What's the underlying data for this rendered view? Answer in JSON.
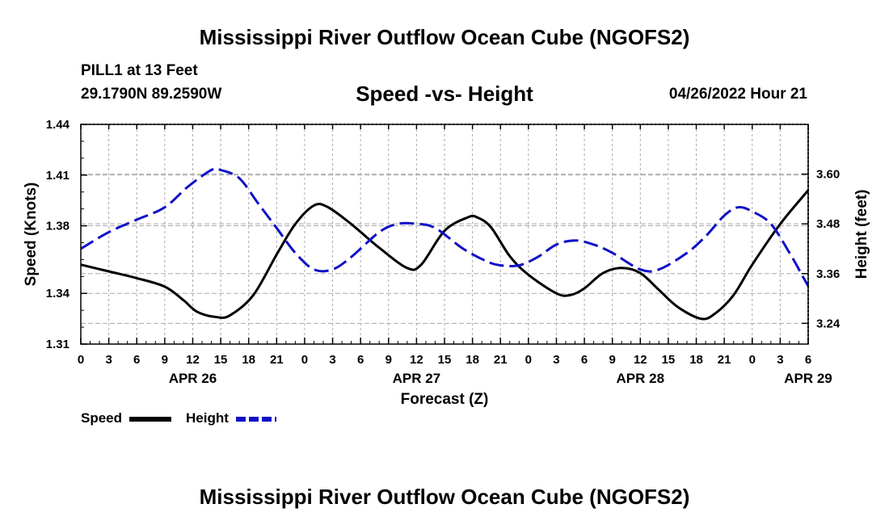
{
  "header": {
    "title_top": "Mississippi River Outflow Ocean Cube (NGOFS2)",
    "title_bottom": "Mississippi River Outflow Ocean Cube (NGOFS2)",
    "station": "PILL1 at 13 Feet",
    "coords": "29.1790N  89.2590W",
    "chart_title": "Speed -vs- Height",
    "date": "04/26/2022 Hour 21"
  },
  "legend": {
    "speed_label": "Speed",
    "height_label": "Height"
  },
  "colors": {
    "speed": "#000000",
    "height": "#1010c8",
    "grid": "#aaaaaa"
  },
  "chart_data": {
    "type": "line",
    "title": "Speed -vs- Height",
    "xlabel": "Forecast (Z)",
    "ylabel": "Speed (Knots)",
    "y2label": "Height (feet)",
    "x_range_hours": [
      0,
      81
    ],
    "x_ticks": [
      {
        "h": 0,
        "label": "0"
      },
      {
        "h": 3,
        "label": "3"
      },
      {
        "h": 6,
        "label": "6"
      },
      {
        "h": 9,
        "label": "9"
      },
      {
        "h": 12,
        "label": "12"
      },
      {
        "h": 15,
        "label": "15"
      },
      {
        "h": 18,
        "label": "18"
      },
      {
        "h": 21,
        "label": "21"
      },
      {
        "h": 24,
        "label": "0"
      },
      {
        "h": 27,
        "label": "3"
      },
      {
        "h": 30,
        "label": "6"
      },
      {
        "h": 33,
        "label": "9"
      },
      {
        "h": 36,
        "label": "12"
      },
      {
        "h": 39,
        "label": "15"
      },
      {
        "h": 42,
        "label": "18"
      },
      {
        "h": 45,
        "label": "21"
      },
      {
        "h": 48,
        "label": "0"
      },
      {
        "h": 51,
        "label": "3"
      },
      {
        "h": 54,
        "label": "6"
      },
      {
        "h": 57,
        "label": "9"
      },
      {
        "h": 60,
        "label": "12"
      },
      {
        "h": 63,
        "label": "15"
      },
      {
        "h": 66,
        "label": "18"
      },
      {
        "h": 69,
        "label": "21"
      },
      {
        "h": 72,
        "label": "0"
      },
      {
        "h": 75,
        "label": "3"
      },
      {
        "h": 78,
        "label": "6"
      }
    ],
    "date_labels": [
      {
        "h": 12,
        "label": "APR 26"
      },
      {
        "h": 36,
        "label": "APR 27"
      },
      {
        "h": 60,
        "label": "APR 28"
      },
      {
        "h": 78,
        "label": "APR 29"
      }
    ],
    "y_left": {
      "min": 1.31,
      "max": 1.44,
      "ticks": [
        "1.31",
        "1.34",
        "1.38",
        "1.41",
        "1.44"
      ]
    },
    "y_right": {
      "min": 3.19,
      "max": 3.72,
      "ticks": [
        "3.24",
        "3.36",
        "3.48",
        "3.60"
      ]
    },
    "series": [
      {
        "name": "Speed",
        "axis": "left",
        "style": "solid",
        "points": [
          [
            0,
            1.357
          ],
          [
            3,
            1.353
          ],
          [
            6,
            1.349
          ],
          [
            9,
            1.344
          ],
          [
            11,
            1.336
          ],
          [
            12.5,
            1.329
          ],
          [
            14.5,
            1.326
          ],
          [
            16,
            1.327
          ],
          [
            18.5,
            1.339
          ],
          [
            21,
            1.363
          ],
          [
            23,
            1.381
          ],
          [
            25,
            1.392
          ],
          [
            26.5,
            1.391
          ],
          [
            29,
            1.381
          ],
          [
            32,
            1.367
          ],
          [
            35,
            1.355
          ],
          [
            36.5,
            1.357
          ],
          [
            39,
            1.377
          ],
          [
            41.5,
            1.385
          ],
          [
            42.5,
            1.385
          ],
          [
            44,
            1.379
          ],
          [
            46,
            1.362
          ],
          [
            48,
            1.351
          ],
          [
            51,
            1.34
          ],
          [
            52.5,
            1.339
          ],
          [
            54,
            1.343
          ],
          [
            56,
            1.352
          ],
          [
            58,
            1.355
          ],
          [
            60,
            1.352
          ],
          [
            62,
            1.342
          ],
          [
            64,
            1.332
          ],
          [
            66.5,
            1.325
          ],
          [
            68,
            1.328
          ],
          [
            70,
            1.339
          ],
          [
            72,
            1.357
          ],
          [
            75,
            1.381
          ],
          [
            78,
            1.401
          ]
        ]
      },
      {
        "name": "Height",
        "axis": "right",
        "style": "dashed",
        "points": [
          [
            0,
            3.42
          ],
          [
            3,
            3.46
          ],
          [
            6,
            3.49
          ],
          [
            9,
            3.52
          ],
          [
            11.5,
            3.57
          ],
          [
            14,
            3.61
          ],
          [
            15,
            3.61
          ],
          [
            17,
            3.59
          ],
          [
            19,
            3.53
          ],
          [
            21,
            3.47
          ],
          [
            23,
            3.41
          ],
          [
            25,
            3.37
          ],
          [
            27,
            3.37
          ],
          [
            29,
            3.4
          ],
          [
            32,
            3.46
          ],
          [
            34,
            3.48
          ],
          [
            36,
            3.48
          ],
          [
            38,
            3.47
          ],
          [
            41,
            3.42
          ],
          [
            43.5,
            3.39
          ],
          [
            45,
            3.38
          ],
          [
            47,
            3.38
          ],
          [
            49,
            3.4
          ],
          [
            51,
            3.43
          ],
          [
            53,
            3.44
          ],
          [
            55,
            3.43
          ],
          [
            57,
            3.41
          ],
          [
            60,
            3.37
          ],
          [
            62,
            3.37
          ],
          [
            65,
            3.41
          ],
          [
            67,
            3.45
          ],
          [
            69,
            3.5
          ],
          [
            70.5,
            3.52
          ],
          [
            72,
            3.51
          ],
          [
            74,
            3.48
          ],
          [
            76,
            3.41
          ],
          [
            77.5,
            3.35
          ],
          [
            78,
            3.33
          ]
        ]
      }
    ]
  }
}
